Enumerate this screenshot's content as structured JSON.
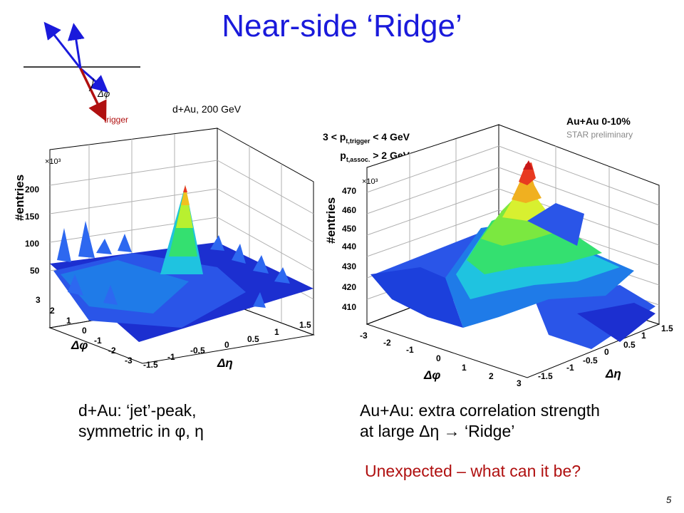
{
  "slide": {
    "title": "Near-side ‘Ridge’",
    "page_number": "5"
  },
  "diagram": {
    "delta_phi_label": "Δφ",
    "trigger_label": "trigger"
  },
  "left_plot": {
    "system_label": "d+Au, 200 GeV",
    "multiplier": "×10³",
    "z_label": "#entries",
    "z_ticks": [
      "50",
      "100",
      "150",
      "200"
    ],
    "dphi_label": "Δφ",
    "dphi_ticks": [
      "3",
      "2",
      "1",
      "0",
      "-1",
      "-2",
      "-3"
    ],
    "deta_label": "Δη",
    "deta_ticks": [
      "-1.5",
      "-1",
      "-0.5",
      "0",
      "0.5",
      "1",
      "1.5"
    ]
  },
  "cuts": {
    "line1": "3 < p",
    "line1_sub": "t,trigger",
    "line1_end": " < 4 GeV",
    "line2": "p",
    "line2_sub": "t,assoc.",
    "line2_end": " > 2 GeV"
  },
  "right_plot": {
    "system_label": "Au+Au 0-10%",
    "status_label": "STAR preliminary",
    "multiplier": "×10³",
    "z_label": "#entries",
    "z_ticks": [
      "410",
      "420",
      "430",
      "440",
      "450",
      "460",
      "470"
    ],
    "dphi_label": "Δφ",
    "dphi_ticks": [
      "-3",
      "-2",
      "-1",
      "0",
      "1",
      "2",
      "3"
    ],
    "deta_label": "Δη",
    "deta_ticks": [
      "-1.5",
      "-1",
      "-0.5",
      "0",
      "0.5",
      "1",
      "1.5"
    ]
  },
  "captions": {
    "left_line1": "d+Au: ‘jet’-peak,",
    "left_line2": "symmetric in φ, η",
    "right_line1": "Au+Au: extra correlation strength",
    "right_line2": "at large Δη  → ‘Ridge’",
    "note": "Unexpected – what can it be?"
  },
  "colors": {
    "title": "#1a1adb",
    "note": "#b01010",
    "trigger": "#b01010",
    "diagram_jet": "#1a1adb"
  }
}
